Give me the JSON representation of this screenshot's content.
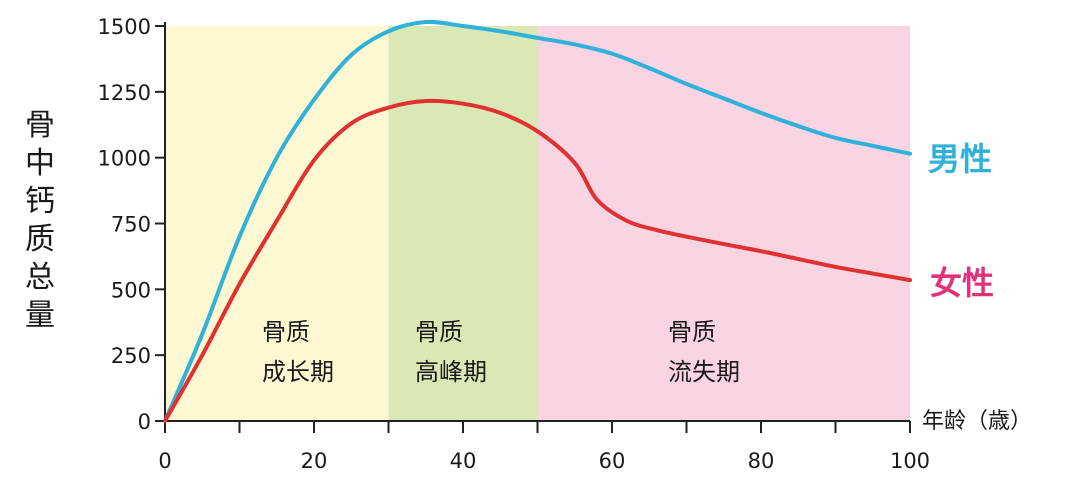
{
  "chart_data": {
    "type": "line",
    "ylabel": "骨中钙质总量",
    "xlabel": "年龄（歳）",
    "xlim": [
      0,
      100
    ],
    "ylim": [
      0,
      1500
    ],
    "x_ticks": [
      "0",
      "20",
      "40",
      "60",
      "80",
      "100"
    ],
    "y_ticks": [
      "0",
      "250",
      "500",
      "750",
      "1000",
      "1250",
      "1500"
    ],
    "regions": [
      {
        "label_line1": "骨质",
        "label_line2": "成长期",
        "x_start": 0,
        "x_end": 30,
        "color": "#fdf8d2"
      },
      {
        "label_line1": "骨质",
        "label_line2": "高峰期",
        "x_start": 30,
        "x_end": 50,
        "color": "#d9e8b4"
      },
      {
        "label_line1": "骨质",
        "label_line2": "流失期",
        "x_start": 50,
        "x_end": 100,
        "color": "#f9d4e3"
      }
    ],
    "series": [
      {
        "name": "男性",
        "color": "#2fb1d9",
        "points": [
          [
            0,
            0
          ],
          [
            5,
            330
          ],
          [
            10,
            700
          ],
          [
            15,
            1000
          ],
          [
            20,
            1220
          ],
          [
            25,
            1390
          ],
          [
            30,
            1480
          ],
          [
            35,
            1515
          ],
          [
            40,
            1500
          ],
          [
            45,
            1480
          ],
          [
            50,
            1455
          ],
          [
            55,
            1430
          ],
          [
            60,
            1395
          ],
          [
            65,
            1340
          ],
          [
            70,
            1280
          ],
          [
            75,
            1225
          ],
          [
            80,
            1170
          ],
          [
            85,
            1120
          ],
          [
            90,
            1075
          ],
          [
            95,
            1045
          ],
          [
            100,
            1015
          ]
        ]
      },
      {
        "name": "女性",
        "color": "#e03131",
        "points": [
          [
            0,
            0
          ],
          [
            5,
            250
          ],
          [
            10,
            520
          ],
          [
            15,
            760
          ],
          [
            20,
            990
          ],
          [
            25,
            1130
          ],
          [
            30,
            1190
          ],
          [
            35,
            1215
          ],
          [
            40,
            1205
          ],
          [
            45,
            1170
          ],
          [
            50,
            1100
          ],
          [
            55,
            980
          ],
          [
            58,
            840
          ],
          [
            62,
            760
          ],
          [
            66,
            725
          ],
          [
            70,
            700
          ],
          [
            75,
            672
          ],
          [
            80,
            645
          ],
          [
            85,
            615
          ],
          [
            90,
            585
          ],
          [
            95,
            560
          ],
          [
            100,
            535
          ]
        ]
      }
    ]
  }
}
